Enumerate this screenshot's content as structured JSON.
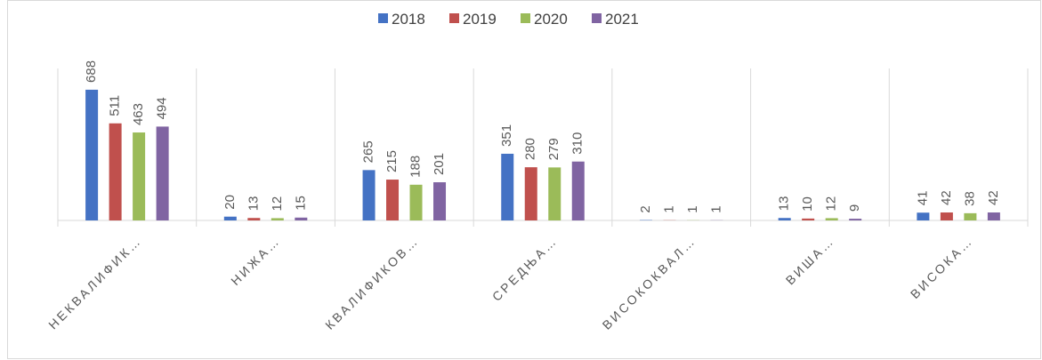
{
  "chart_data": {
    "type": "bar",
    "categories": [
      "НЕКВАЛИФИК…",
      "НИЖА…",
      "КВАЛИФИКОВ…",
      "СРЕДЊА…",
      "ВИСОКОКВАЛ…",
      "ВИША…",
      "ВИСОКА…"
    ],
    "series": [
      {
        "name": "2018",
        "color": "#4472c4",
        "values": [
          688,
          20,
          265,
          351,
          2,
          13,
          41
        ]
      },
      {
        "name": "2019",
        "color": "#c0504d",
        "values": [
          511,
          13,
          215,
          280,
          1,
          10,
          42
        ]
      },
      {
        "name": "2020",
        "color": "#9bbb59",
        "values": [
          463,
          12,
          188,
          279,
          1,
          12,
          38
        ]
      },
      {
        "name": "2021",
        "color": "#8064a2",
        "values": [
          494,
          15,
          201,
          310,
          1,
          9,
          42
        ]
      }
    ],
    "ylim": [
      0,
      800
    ],
    "legend": "top"
  }
}
